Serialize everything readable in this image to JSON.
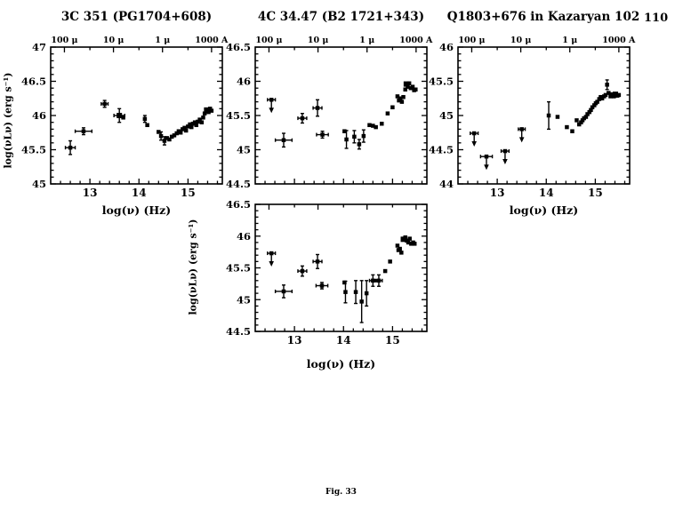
{
  "page": {
    "number": "110",
    "caption": "Fig. 33"
  },
  "chart_data": [
    {
      "type": "scatter",
      "title": "3C 351 (PG1704+608)",
      "xlabel": "log(ν)  (Hz)",
      "ylabel": "log(νLν)  (erg s⁻¹)",
      "xlim": [
        12.2,
        15.7
      ],
      "ylim": [
        45,
        47
      ],
      "x_ticks": [
        13,
        14,
        15
      ],
      "y_ticks": [
        45,
        45.5,
        46,
        46.5,
        47
      ],
      "x_tick_labels_visible": true,
      "top_axis": {
        "labels": [
          "100 μ",
          "10 μ",
          "1 μ",
          "1000 A"
        ],
        "log_nu_positions": [
          12.48,
          13.48,
          14.48,
          15.48
        ],
        "labels_visible": true
      },
      "points": [
        [
          12.6,
          45.53,
          {
            "xe": 0.1,
            "ye": 0.1
          }
        ],
        [
          12.87,
          45.77,
          {
            "xe": 0.17,
            "ye": 0.05
          }
        ],
        [
          13.3,
          46.17,
          {
            "xe": 0.07,
            "ye": 0.05
          }
        ],
        [
          13.6,
          46.0,
          {
            "xe": 0.11,
            "ye": 0.1,
            "s": 6
          }
        ],
        [
          13.68,
          45.97
        ],
        [
          14.12,
          45.95,
          {
            "ye": 0.05
          }
        ],
        [
          14.17,
          45.86
        ],
        [
          14.4,
          45.76
        ],
        [
          14.45,
          45.7,
          {
            "ye": 0.06
          }
        ],
        [
          14.52,
          45.63,
          {
            "ye": 0.06
          }
        ],
        [
          14.57,
          45.67
        ],
        [
          14.62,
          45.65
        ],
        [
          14.67,
          45.69
        ],
        [
          14.72,
          45.71
        ],
        [
          14.77,
          45.74
        ],
        [
          14.81,
          45.77
        ],
        [
          14.85,
          45.75
        ],
        [
          14.89,
          45.8
        ],
        [
          14.93,
          45.82
        ],
        [
          14.96,
          45.78
        ],
        [
          15.0,
          45.84
        ],
        [
          15.04,
          45.87
        ],
        [
          15.07,
          45.83
        ],
        [
          15.1,
          45.88
        ],
        [
          15.14,
          45.9
        ],
        [
          15.17,
          45.86
        ],
        [
          15.2,
          45.91
        ],
        [
          15.24,
          45.94
        ],
        [
          15.28,
          45.9
        ],
        [
          15.31,
          45.97
        ],
        [
          15.34,
          46.03
        ],
        [
          15.38,
          46.08,
          {
            "s": 6
          }
        ],
        [
          15.42,
          46.05
        ],
        [
          15.45,
          46.1
        ],
        [
          15.48,
          46.07
        ]
      ]
    },
    {
      "type": "scatter",
      "title": "4C 34.47 (B2 1721+343)",
      "xlabel": null,
      "ylabel": null,
      "xlim": [
        12.2,
        15.7
      ],
      "ylim": [
        44.5,
        46.5
      ],
      "x_ticks": [
        13,
        14,
        15
      ],
      "y_ticks": [
        44.5,
        45,
        45.5,
        46,
        46.5
      ],
      "x_tick_labels_visible": false,
      "top_axis": {
        "labels": [
          "100 μ",
          "10 μ",
          "1 μ",
          "1000 A"
        ],
        "log_nu_positions": [
          12.48,
          13.48,
          14.48,
          15.48
        ],
        "labels_visible": true
      },
      "points": [
        [
          12.53,
          45.73,
          {
            "ul": 1,
            "xe": 0.08
          }
        ],
        [
          12.78,
          45.14,
          {
            "xe": 0.17,
            "ye": 0.1
          }
        ],
        [
          13.16,
          45.46,
          {
            "xe": 0.09,
            "ye": 0.07
          }
        ],
        [
          13.47,
          45.61,
          {
            "xe": 0.09,
            "ye": 0.12
          }
        ],
        [
          13.57,
          45.22,
          {
            "xe": 0.12,
            "ye": 0.05
          }
        ],
        [
          14.02,
          45.27
        ],
        [
          14.06,
          45.15,
          {
            "ye": 0.13
          }
        ],
        [
          14.22,
          45.19,
          {
            "ye": 0.09
          }
        ],
        [
          14.32,
          45.08,
          {
            "ye": 0.07
          }
        ],
        [
          14.41,
          45.2,
          {
            "ye": 0.09
          }
        ],
        [
          14.53,
          45.36
        ],
        [
          14.6,
          45.35
        ],
        [
          14.66,
          45.33
        ],
        [
          14.78,
          45.38
        ],
        [
          14.9,
          45.53
        ],
        [
          15.0,
          45.62
        ],
        [
          15.1,
          45.78
        ],
        [
          15.13,
          45.72
        ],
        [
          15.16,
          45.75
        ],
        [
          15.19,
          45.7
        ],
        [
          15.22,
          45.77
        ],
        [
          15.26,
          45.88
        ],
        [
          15.28,
          45.96,
          {
            "s": 6
          }
        ],
        [
          15.31,
          45.92
        ],
        [
          15.34,
          45.97
        ],
        [
          15.37,
          45.9
        ],
        [
          15.41,
          45.92
        ],
        [
          15.44,
          45.87
        ],
        [
          15.47,
          45.88
        ]
      ]
    },
    {
      "type": "scatter",
      "title": "Q1803+676 in Kazaryan 102",
      "xlabel": "log(ν)  (Hz)",
      "ylabel": null,
      "xlim": [
        12.2,
        15.7
      ],
      "ylim": [
        44,
        46
      ],
      "x_ticks": [
        13,
        14,
        15
      ],
      "y_ticks": [
        44,
        44.5,
        45,
        45.5,
        46
      ],
      "x_tick_labels_visible": true,
      "top_axis": {
        "labels": [
          "100 μ",
          "10 μ",
          "1 μ",
          "1000 A"
        ],
        "log_nu_positions": [
          12.48,
          13.48,
          14.48,
          15.48
        ],
        "labels_visible": true
      },
      "points": [
        [
          12.53,
          44.74,
          {
            "ul": 1,
            "xe": 0.08
          }
        ],
        [
          12.78,
          44.4,
          {
            "ul": 1,
            "xe": 0.12
          }
        ],
        [
          13.16,
          44.48,
          {
            "ul": 1,
            "xe": 0.08
          }
        ],
        [
          13.5,
          44.8,
          {
            "ul": 1,
            "xe": 0.07
          }
        ],
        [
          14.05,
          45.0,
          {
            "ye": 0.2
          }
        ],
        [
          14.23,
          44.98
        ],
        [
          14.42,
          44.83
        ],
        [
          14.53,
          44.77
        ],
        [
          14.62,
          44.93
        ],
        [
          14.67,
          44.87
        ],
        [
          14.71,
          44.9
        ],
        [
          14.74,
          44.93
        ],
        [
          14.77,
          44.96
        ],
        [
          14.81,
          44.98
        ],
        [
          14.84,
          45.02
        ],
        [
          14.88,
          45.05
        ],
        [
          14.91,
          45.08
        ],
        [
          14.94,
          45.12
        ],
        [
          14.98,
          45.15
        ],
        [
          15.01,
          45.18
        ],
        [
          15.04,
          45.2
        ],
        [
          15.08,
          45.24
        ],
        [
          15.11,
          45.27
        ],
        [
          15.14,
          45.25
        ],
        [
          15.18,
          45.28
        ],
        [
          15.21,
          45.3
        ],
        [
          15.24,
          45.45,
          {
            "ye": 0.07
          }
        ],
        [
          15.27,
          45.33
        ],
        [
          15.31,
          45.28
        ],
        [
          15.34,
          45.31
        ],
        [
          15.38,
          45.28
        ],
        [
          15.41,
          45.31,
          {
            "s": 6
          }
        ],
        [
          15.45,
          45.29
        ],
        [
          15.48,
          45.3
        ]
      ]
    },
    {
      "type": "scatter",
      "title": null,
      "xlabel": "log(ν)  (Hz)",
      "ylabel": "log(νLν)  (erg s⁻¹)",
      "xlim": [
        12.2,
        15.7
      ],
      "ylim": [
        44.5,
        46.5
      ],
      "x_ticks": [
        13,
        14,
        15
      ],
      "y_ticks": [
        44.5,
        45,
        45.5,
        46,
        46.5
      ],
      "x_tick_labels_visible": true,
      "top_axis": {
        "labels": [
          "100 μ",
          "10 μ",
          "1 μ",
          "1000 A"
        ],
        "log_nu_positions": [
          12.48,
          13.48,
          14.48,
          15.48
        ],
        "labels_visible": false
      },
      "points": [
        [
          12.53,
          45.73,
          {
            "ul": 1,
            "xe": 0.08
          }
        ],
        [
          12.78,
          45.13,
          {
            "xe": 0.17,
            "ye": 0.1
          }
        ],
        [
          13.16,
          45.45,
          {
            "xe": 0.09,
            "ye": 0.08
          }
        ],
        [
          13.47,
          45.6,
          {
            "xe": 0.09,
            "ye": 0.11
          }
        ],
        [
          13.56,
          45.22,
          {
            "xe": 0.12,
            "ye": 0.05
          }
        ],
        [
          14.02,
          45.27
        ],
        [
          14.04,
          45.12,
          {
            "ye": 0.17
          }
        ],
        [
          14.25,
          45.12,
          {
            "ye": 0.18
          }
        ],
        [
          14.37,
          44.97,
          {
            "ye": 0.33
          }
        ],
        [
          14.47,
          45.1,
          {
            "ye": 0.2
          }
        ],
        [
          14.6,
          45.3,
          {
            "xe": 0.07,
            "ye": 0.09
          }
        ],
        [
          14.72,
          45.3,
          {
            "xe": 0.07,
            "ye": 0.09
          }
        ],
        [
          14.85,
          45.45
        ],
        [
          14.95,
          45.6
        ],
        [
          15.1,
          45.85
        ],
        [
          15.12,
          45.78
        ],
        [
          15.15,
          45.8
        ],
        [
          15.18,
          45.74
        ],
        [
          15.22,
          45.95,
          {
            "s": 6
          }
        ],
        [
          15.26,
          45.98
        ],
        [
          15.29,
          45.93
        ],
        [
          15.32,
          45.9
        ],
        [
          15.35,
          45.96
        ],
        [
          15.38,
          45.88
        ],
        [
          15.42,
          45.9
        ],
        [
          15.45,
          45.88
        ]
      ]
    }
  ]
}
